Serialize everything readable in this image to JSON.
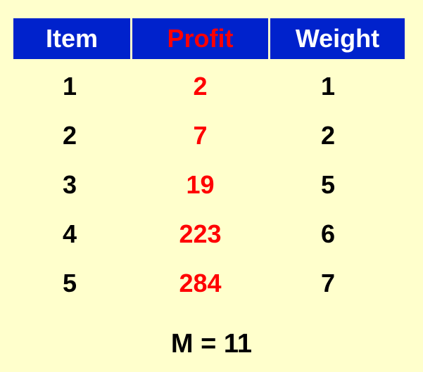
{
  "table": {
    "headers": {
      "item": "Item",
      "profit": "Profit",
      "weight": "Weight"
    },
    "rows": [
      {
        "item": "1",
        "profit": "2",
        "weight": "1"
      },
      {
        "item": "2",
        "profit": "7",
        "weight": "2"
      },
      {
        "item": "3",
        "profit": "19",
        "weight": "5"
      },
      {
        "item": "4",
        "profit": "223",
        "weight": "6"
      },
      {
        "item": "5",
        "profit": "284",
        "weight": "7"
      }
    ]
  },
  "capacity": "M = 11",
  "colors": {
    "background": "#ffffcc",
    "header_background": "#0022cc",
    "header_text": "#ffffff",
    "profit_text": "#ff0000",
    "body_text": "#000000"
  }
}
